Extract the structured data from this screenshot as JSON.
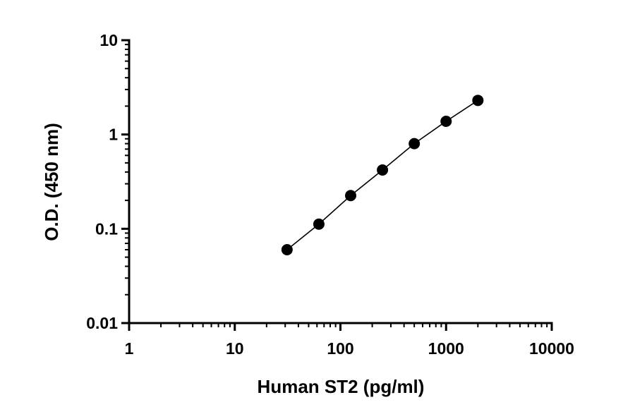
{
  "chart_data": {
    "type": "scatter",
    "title": "",
    "xlabel": "Human ST2 (pg/ml)",
    "ylabel": "O.D. (450 nm)",
    "x_scale": "log",
    "y_scale": "log",
    "xlim": [
      1,
      10000
    ],
    "ylim": [
      0.01,
      10
    ],
    "x_ticks": [
      1,
      10,
      100,
      1000,
      10000
    ],
    "x_tick_labels": [
      "1",
      "10",
      "100",
      "1000",
      "10000"
    ],
    "y_ticks": [
      0.01,
      0.1,
      1,
      10
    ],
    "y_tick_labels": [
      "0.01",
      "0.1",
      "1",
      "10"
    ],
    "grid": false,
    "series": [
      {
        "x": [
          31.25,
          62.5,
          125,
          250,
          500,
          1000,
          2000
        ],
        "y": [
          0.06,
          0.112,
          0.225,
          0.42,
          0.8,
          1.38,
          2.3
        ],
        "marker": "circle",
        "line": true,
        "color": "#000000"
      }
    ]
  }
}
